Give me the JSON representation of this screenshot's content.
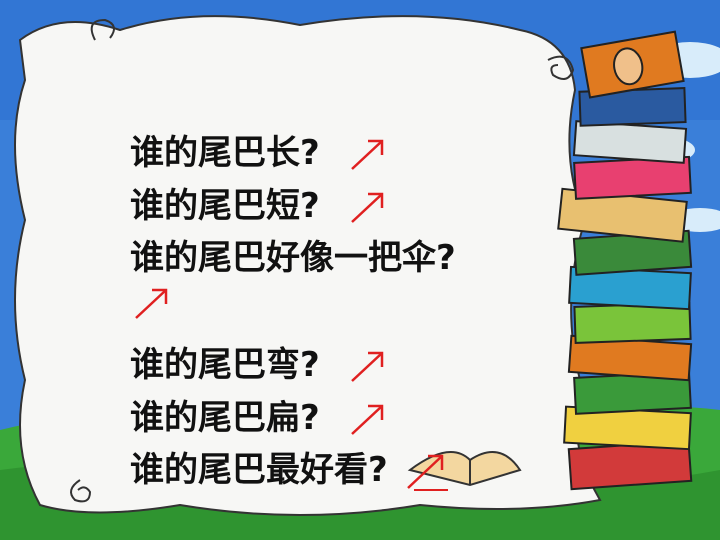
{
  "slide": {
    "lines": [
      {
        "text": "谁的尾巴长?",
        "arrow_color": "#e02020"
      },
      {
        "text": "谁的尾巴短?",
        "arrow_color": "#e02020"
      },
      {
        "text": "谁的尾巴好像一把伞?",
        "arrow_color": "#e02020"
      },
      {
        "text": "谁的尾巴弯?",
        "arrow_color": "#e02020"
      },
      {
        "text": "谁的尾巴扁?",
        "arrow_color": "#e02020"
      },
      {
        "text": "谁的尾巴最好看?",
        "arrow_color": "#e02020"
      }
    ]
  },
  "colors": {
    "sky": "#3a7fd9",
    "grass": "#3aa83a",
    "paper": "#f7f7f5",
    "arrow": "#e02020"
  }
}
